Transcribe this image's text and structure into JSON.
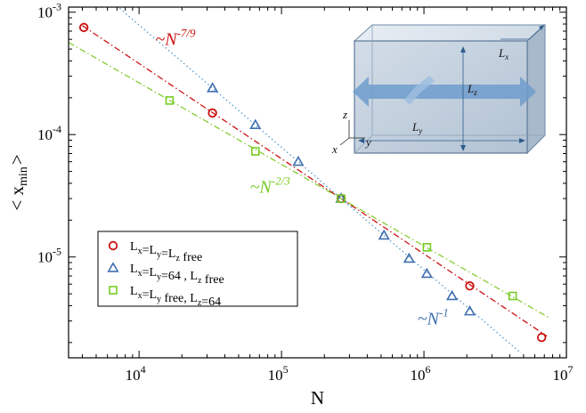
{
  "chart_data": {
    "type": "scatter",
    "title": "",
    "xlabel": "N",
    "ylabel": "< x",
    "ylabel_sub": "min",
    "ylabel_close": ">",
    "xscale": "log",
    "yscale": "log",
    "xlim": [
      3200,
      10000000
    ],
    "ylim": [
      1.5e-06,
      0.0011
    ],
    "x_ticks": [
      {
        "value": 10000,
        "base": "10",
        "exp": "4"
      },
      {
        "value": 100000,
        "base": "10",
        "exp": "5"
      },
      {
        "value": 1000000,
        "base": "10",
        "exp": "6"
      },
      {
        "value": 10000000,
        "base": "10",
        "exp": "7"
      }
    ],
    "y_ticks": [
      {
        "value": 1e-05,
        "base": "10",
        "exp": "-5"
      },
      {
        "value": 0.0001,
        "base": "10",
        "exp": "-4"
      },
      {
        "value": 0.001,
        "base": "10",
        "exp": "-3"
      }
    ],
    "grid": false,
    "legend_position": "bottom-left",
    "series": [
      {
        "name": "Lx=Ly=Lz free",
        "legend": {
          "parts": [
            [
              "L",
              "x"
            ],
            [
              "=L",
              "y"
            ],
            [
              "=L",
              "z"
            ]
          ],
          "suffix": " free"
        },
        "marker": "circle",
        "color": "#cc1111",
        "points": [
          [
            4096,
            0.00075
          ],
          [
            32768,
            0.00015
          ],
          [
            262144,
            3e-05
          ],
          [
            2097152,
            5.8e-06
          ],
          [
            6700000,
            2.2e-06
          ]
        ]
      },
      {
        "name": "Lx=Ly=64 , Lz free",
        "legend": {
          "parts": [
            [
              "L",
              "x"
            ],
            [
              "=L",
              "y"
            ],
            [
              "=64 , L",
              "z"
            ]
          ],
          "suffix": " free"
        },
        "marker": "triangle",
        "color": "#3f6faf",
        "points": [
          [
            32768,
            0.00024
          ],
          [
            65536,
            0.00012
          ],
          [
            131072,
            6e-05
          ],
          [
            262144,
            3e-05
          ],
          [
            524288,
            1.5e-05
          ],
          [
            786432,
            9.7e-06
          ],
          [
            1048576,
            7.3e-06
          ],
          [
            1572864,
            4.8e-06
          ],
          [
            2097152,
            3.6e-06
          ]
        ]
      },
      {
        "name": "Lx=Ly free, Lz=64",
        "legend": {
          "parts": [
            [
              "L",
              "x"
            ],
            [
              "=L",
              "y"
            ],
            [
              " free, L",
              "z"
            ]
          ],
          "suffix": "=64"
        },
        "marker": "square",
        "color": "#77cc22",
        "points": [
          [
            16384,
            0.00019
          ],
          [
            65536,
            7.3e-05
          ],
          [
            262144,
            3e-05
          ],
          [
            1048576,
            1.2e-05
          ],
          [
            4194304,
            4.8e-06
          ]
        ]
      }
    ],
    "fit_lines": [
      {
        "series": "Lx=Ly=Lz free",
        "exponent": -0.7778,
        "anchor": [
          262144,
          3e-05
        ],
        "color": "#cc1111",
        "style": "dashdot",
        "x_range": [
          4000,
          7300000
        ]
      },
      {
        "series": "Lx=Ly=64 , Lz free",
        "exponent": -1.0,
        "anchor": [
          262144,
          3e-05
        ],
        "color": "#5599cc",
        "style": "dotted",
        "x_range": [
          4700,
          4800000
        ]
      },
      {
        "series": "Lx=Ly free, Lz=64",
        "exponent": -0.6667,
        "anchor": [
          262144,
          3e-05
        ],
        "color": "#88cc33",
        "style": "dashdot",
        "x_range": [
          3200,
          7500000
        ]
      }
    ],
    "annotations": [
      {
        "text": "~N",
        "exp": "-7/9",
        "color": "#cc1111",
        "at": [
          13000,
          0.00054
        ]
      },
      {
        "text": "~N",
        "exp": "-2/3",
        "color": "#77cc22",
        "at": [
          60000,
          3.35e-05
        ]
      },
      {
        "text": "~N",
        "exp": "-1",
        "color": "#3f6faf",
        "at": [
          900000,
          2.8e-06
        ]
      }
    ],
    "inset": {
      "labels": {
        "Lx": [
          "L",
          "x"
        ],
        "Lz": [
          "L",
          "z"
        ],
        "Ly": [
          "L",
          "y"
        ]
      },
      "axes": {
        "x": "x",
        "y": "y",
        "z": "z"
      }
    }
  }
}
